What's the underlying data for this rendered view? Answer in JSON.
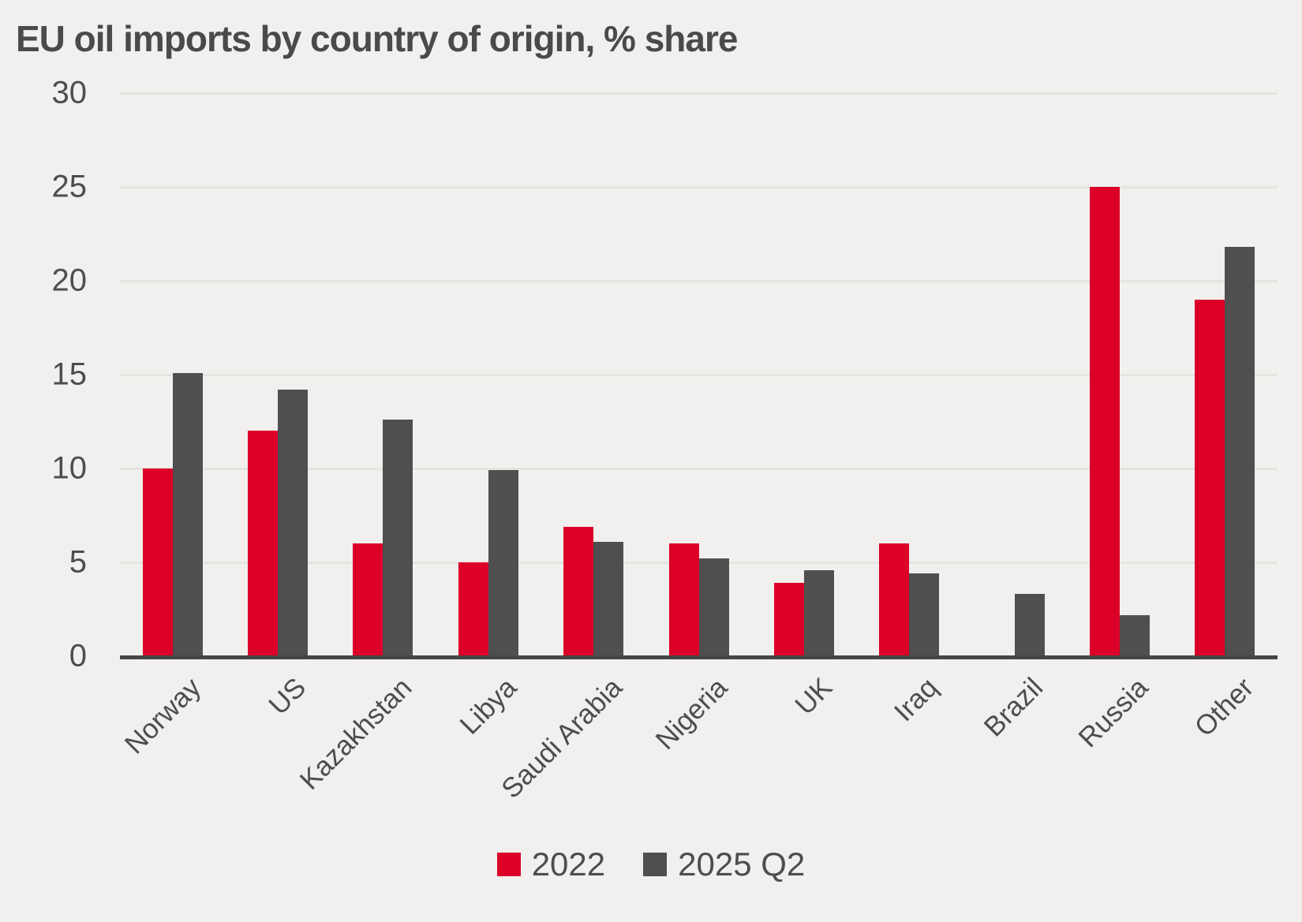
{
  "chart_data": {
    "type": "bar",
    "title": "EU oil imports by country of origin, % share",
    "categories": [
      "Norway",
      "US",
      "Kazakhstan",
      "Libya",
      "Saudi Arabia",
      "Nigeria",
      "UK",
      "Iraq",
      "Brazil",
      "Russia",
      "Other"
    ],
    "series": [
      {
        "name": "2022",
        "color": "#dc0028",
        "values": [
          10,
          12,
          6,
          5,
          6.9,
          6,
          3.9,
          6,
          0,
          25,
          19
        ]
      },
      {
        "name": "2025 Q2",
        "color": "#4f4f4f",
        "values": [
          15.1,
          14.2,
          12.6,
          9.9,
          6.1,
          5.2,
          4.6,
          4.4,
          3.3,
          2.2,
          21.8
        ]
      }
    ],
    "ylabel": "",
    "xlabel": "",
    "ylim": [
      0,
      30
    ],
    "yticks": [
      0,
      5,
      10,
      15,
      20,
      25,
      30
    ],
    "grid": true,
    "legend_position": "bottom-center",
    "colors": {
      "background": "#f1f0ee",
      "gridline": "#e5e4e1",
      "axis_line": "#454545",
      "text": "#4d4d4d",
      "title_text": "#4a4a4a"
    }
  }
}
